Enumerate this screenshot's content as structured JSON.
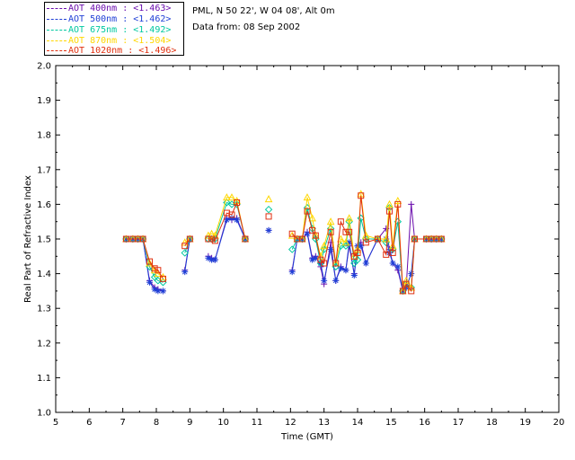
{
  "chart_data": {
    "type": "line",
    "xlabel": "Time (GMT)",
    "ylabel": "Real Part of Refractive Index",
    "xlim": [
      5,
      20
    ],
    "ylim": [
      1.0,
      2.0
    ],
    "xticks": [
      "5",
      "6",
      "7",
      "8",
      "9",
      "10",
      "11",
      "12",
      "13",
      "14",
      "15",
      "16",
      "17",
      "18",
      "19",
      "20"
    ],
    "yticks": [
      "1.0",
      "1.1",
      "1.2",
      "1.3",
      "1.4",
      "1.5",
      "1.6",
      "1.7",
      "1.8",
      "1.9",
      "2.0"
    ],
    "legend_placement": "top-left",
    "annotations": [
      "PML, N 50 22', W 04 08', Alt 0m",
      "Data from: 08 Sep 2002"
    ],
    "series": [
      {
        "name": "AOT  400nm : <1.463>",
        "color": "#6a0dad",
        "marker": "plus",
        "x": [
          7.1,
          7.3,
          7.45,
          7.6,
          7.8,
          7.95,
          8.05,
          8.2,
          8.85,
          9.0,
          9.55,
          9.65,
          9.75,
          10.1,
          10.25,
          10.4,
          10.65,
          11.35,
          12.05,
          12.2,
          12.35,
          12.5,
          12.65,
          12.75,
          12.9,
          13.0,
          13.2,
          13.35,
          13.5,
          13.65,
          13.75,
          13.9,
          14.0,
          14.1,
          14.25,
          14.6,
          14.85,
          14.95,
          15.05,
          15.2,
          15.35,
          15.45,
          15.6,
          15.7,
          16.05,
          16.2,
          16.35,
          16.5
        ],
        "y": [
          1.5,
          1.5,
          1.5,
          1.5,
          1.38,
          1.36,
          1.355,
          1.35,
          1.41,
          1.5,
          1.45,
          1.445,
          1.44,
          1.56,
          1.555,
          1.56,
          1.5,
          1.525,
          1.41,
          1.5,
          1.5,
          1.52,
          1.445,
          1.45,
          1.42,
          1.37,
          1.49,
          1.38,
          1.42,
          1.41,
          1.48,
          1.4,
          1.48,
          1.49,
          1.43,
          1.5,
          1.53,
          1.47,
          1.43,
          1.41,
          1.35,
          1.36,
          1.6,
          1.5,
          1.5,
          1.5,
          1.5,
          1.5
        ]
      },
      {
        "name": "AOT  500nm : <1.462>",
        "color": "#1f3fd6",
        "marker": "asterisk",
        "x": [
          7.1,
          7.3,
          7.45,
          7.6,
          7.8,
          7.95,
          8.05,
          8.2,
          8.85,
          9.0,
          9.55,
          9.65,
          9.75,
          10.1,
          10.25,
          10.4,
          10.65,
          11.35,
          12.05,
          12.2,
          12.35,
          12.5,
          12.65,
          12.75,
          12.9,
          13.0,
          13.2,
          13.35,
          13.5,
          13.65,
          13.75,
          13.9,
          14.0,
          14.1,
          14.25,
          14.6,
          14.85,
          14.95,
          15.05,
          15.2,
          15.35,
          15.45,
          15.6,
          15.7,
          16.05,
          16.2,
          16.35,
          16.5
        ],
        "y": [
          1.5,
          1.5,
          1.5,
          1.5,
          1.375,
          1.355,
          1.35,
          1.35,
          1.405,
          1.5,
          1.445,
          1.44,
          1.44,
          1.555,
          1.56,
          1.555,
          1.5,
          1.525,
          1.405,
          1.5,
          1.5,
          1.515,
          1.44,
          1.445,
          1.43,
          1.38,
          1.47,
          1.38,
          1.415,
          1.41,
          1.49,
          1.395,
          1.48,
          1.48,
          1.43,
          1.5,
          1.5,
          1.46,
          1.43,
          1.42,
          1.35,
          1.36,
          1.4,
          1.5,
          1.5,
          1.5,
          1.5,
          1.5
        ]
      },
      {
        "name": "AOT  675nm : <1.492>",
        "color": "#00c8a0",
        "marker": "diamond",
        "x": [
          7.1,
          7.3,
          7.45,
          7.6,
          7.8,
          7.95,
          8.05,
          8.2,
          8.85,
          9.0,
          9.55,
          9.65,
          9.75,
          10.1,
          10.25,
          10.4,
          10.65,
          11.35,
          12.05,
          12.2,
          12.35,
          12.5,
          12.65,
          12.75,
          12.9,
          13.0,
          13.2,
          13.35,
          13.5,
          13.65,
          13.75,
          13.9,
          14.0,
          14.1,
          14.25,
          14.6,
          14.85,
          14.95,
          15.05,
          15.2,
          15.35,
          15.45,
          15.6,
          15.7,
          16.05,
          16.2,
          16.35,
          16.5
        ],
        "y": [
          1.5,
          1.5,
          1.5,
          1.5,
          1.42,
          1.39,
          1.38,
          1.375,
          1.46,
          1.5,
          1.5,
          1.5,
          1.5,
          1.605,
          1.6,
          1.6,
          1.5,
          1.585,
          1.47,
          1.5,
          1.5,
          1.59,
          1.53,
          1.5,
          1.43,
          1.47,
          1.53,
          1.42,
          1.48,
          1.48,
          1.55,
          1.43,
          1.44,
          1.56,
          1.5,
          1.5,
          1.49,
          1.59,
          1.47,
          1.55,
          1.35,
          1.37,
          1.36,
          1.5,
          1.5,
          1.5,
          1.5,
          1.5
        ]
      },
      {
        "name": "AOT  870nm : <1.504>",
        "color": "#ffd700",
        "marker": "triangle",
        "x": [
          7.1,
          7.3,
          7.45,
          7.6,
          7.8,
          7.95,
          8.05,
          8.2,
          8.85,
          9.0,
          9.55,
          9.65,
          9.75,
          10.1,
          10.25,
          10.4,
          10.65,
          11.35,
          12.05,
          12.2,
          12.35,
          12.5,
          12.65,
          12.75,
          12.9,
          13.0,
          13.2,
          13.35,
          13.5,
          13.65,
          13.75,
          13.9,
          14.0,
          14.1,
          14.25,
          14.6,
          14.85,
          14.95,
          15.05,
          15.2,
          15.35,
          15.45,
          15.6,
          15.7,
          16.05,
          16.2,
          16.35,
          16.5
        ],
        "y": [
          1.5,
          1.5,
          1.5,
          1.5,
          1.43,
          1.41,
          1.4,
          1.39,
          1.49,
          1.5,
          1.51,
          1.515,
          1.51,
          1.62,
          1.62,
          1.61,
          1.5,
          1.615,
          1.51,
          1.5,
          1.5,
          1.62,
          1.56,
          1.51,
          1.45,
          1.48,
          1.55,
          1.43,
          1.5,
          1.49,
          1.56,
          1.45,
          1.47,
          1.63,
          1.51,
          1.5,
          1.5,
          1.6,
          1.48,
          1.61,
          1.35,
          1.38,
          1.36,
          1.5,
          1.5,
          1.5,
          1.5,
          1.5
        ]
      },
      {
        "name": "AOT 1020nm : <1.496>",
        "color": "#e03010",
        "marker": "square",
        "x": [
          7.1,
          7.3,
          7.45,
          7.6,
          7.8,
          7.95,
          8.05,
          8.2,
          8.85,
          9.0,
          9.55,
          9.65,
          9.75,
          10.1,
          10.25,
          10.4,
          10.65,
          11.35,
          12.05,
          12.2,
          12.35,
          12.5,
          12.65,
          12.75,
          12.9,
          13.0,
          13.2,
          13.35,
          13.5,
          13.65,
          13.75,
          13.9,
          14.0,
          14.1,
          14.25,
          14.6,
          14.85,
          14.95,
          15.05,
          15.2,
          15.35,
          15.45,
          15.6,
          15.7,
          16.05,
          16.2,
          16.35,
          16.5
        ],
        "y": [
          1.5,
          1.5,
          1.5,
          1.5,
          1.435,
          1.415,
          1.41,
          1.385,
          1.48,
          1.5,
          1.5,
          1.5,
          1.495,
          1.575,
          1.57,
          1.605,
          1.5,
          1.565,
          1.515,
          1.5,
          1.5,
          1.58,
          1.525,
          1.51,
          1.44,
          1.43,
          1.52,
          1.43,
          1.55,
          1.52,
          1.52,
          1.45,
          1.46,
          1.625,
          1.49,
          1.5,
          1.455,
          1.58,
          1.46,
          1.6,
          1.35,
          1.37,
          1.35,
          1.5,
          1.5,
          1.5,
          1.5,
          1.5
        ]
      }
    ]
  },
  "legend": {
    "entries": [
      {
        "label": "AOT  400nm : <1.463>",
        "color": "#6a0dad"
      },
      {
        "label": "AOT  500nm : <1.462>",
        "color": "#1f3fd6"
      },
      {
        "label": "AOT  675nm : <1.492>",
        "color": "#00c8a0"
      },
      {
        "label": "AOT  870nm : <1.504>",
        "color": "#ffd700"
      },
      {
        "label": "AOT 1020nm : <1.496>",
        "color": "#e03010"
      }
    ]
  },
  "header": {
    "site": "PML, N 50 22', W 04 08', Alt 0m",
    "date": "Data from: 08 Sep 2002"
  }
}
